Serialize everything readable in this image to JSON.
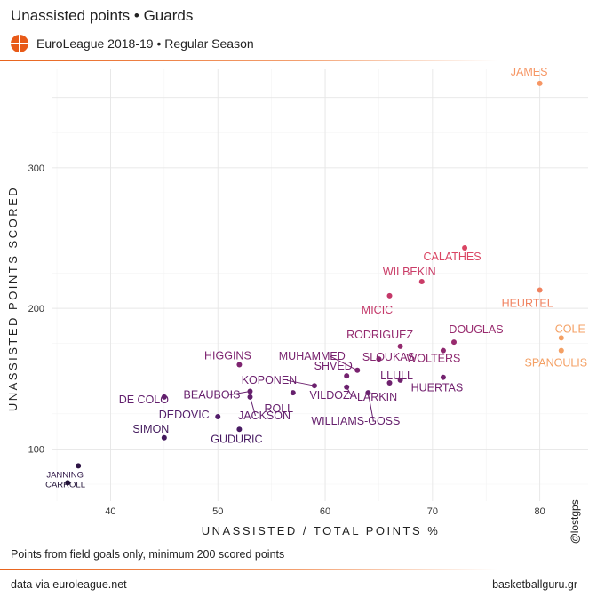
{
  "header": {
    "title": "Unassisted points • Guards",
    "subtitle": "EuroLeague 2018-19 • Regular Season",
    "logo_icon": "euroleague-ball-logo"
  },
  "footer": {
    "caption": "Points from field goals only, minimum 200 scored points",
    "source": "data via euroleague.net",
    "site": "basketballguru.gr",
    "handle_at": "@",
    "handle": "lostgps"
  },
  "colors": {
    "low": "#1a1030",
    "mid_low": "#5c1f6b",
    "mid": "#a42e6a",
    "mid_high": "#d8456a",
    "high": "#f4885a"
  },
  "chart_data": {
    "type": "scatter",
    "xlabel": "UNASSISTED / TOTAL POINTS %",
    "ylabel": "UNASSISTED POINTS SCORED",
    "xlim": [
      34.5,
      84.5
    ],
    "ylim": [
      63,
      370
    ],
    "xticks": [
      40,
      50,
      60,
      70,
      80
    ],
    "yticks": [
      100,
      200,
      300
    ],
    "grid": true,
    "legend": "none",
    "points": [
      {
        "name": "JAMES",
        "x": 80,
        "y": 360
      },
      {
        "name": "CALATHES",
        "x": 73,
        "y": 243
      },
      {
        "name": "WILBEKIN",
        "x": 69,
        "y": 219
      },
      {
        "name": "HEURTEL",
        "x": 80,
        "y": 213
      },
      {
        "name": "MICIC",
        "x": 66,
        "y": 209
      },
      {
        "name": "COLE",
        "x": 82,
        "y": 179
      },
      {
        "name": "DOUGLAS",
        "x": 72,
        "y": 176
      },
      {
        "name": "RODRIGUEZ",
        "x": 67,
        "y": 173
      },
      {
        "name": "SPANOULIS",
        "x": 82,
        "y": 170
      },
      {
        "name": "WOLTERS",
        "x": 71,
        "y": 170
      },
      {
        "name": "SLOUKAS",
        "x": 65,
        "y": 164
      },
      {
        "name": "HIGGINS",
        "x": 52,
        "y": 160
      },
      {
        "name": "MUHAMMED",
        "x": 63,
        "y": 156
      },
      {
        "name": "SHVED",
        "x": 62,
        "y": 152
      },
      {
        "name": "LLULL",
        "x": 67,
        "y": 149
      },
      {
        "name": "HUERTAS",
        "x": 71,
        "y": 151
      },
      {
        "name": "LARKIN",
        "x": 66,
        "y": 147
      },
      {
        "name": "KOPONEN",
        "x": 59,
        "y": 145
      },
      {
        "name": "VILDOZA",
        "x": 62,
        "y": 144
      },
      {
        "name": "WILLIAMS-GOSS",
        "x": 64,
        "y": 140
      },
      {
        "name": "BEAUBOIS",
        "x": 53,
        "y": 141
      },
      {
        "name": "ROLL",
        "x": 57,
        "y": 140
      },
      {
        "name": "DE COLO",
        "x": 45,
        "y": 137
      },
      {
        "name": "JACKSON",
        "x": 53,
        "y": 137
      },
      {
        "name": "DEDOVIC",
        "x": 50,
        "y": 123
      },
      {
        "name": "GUDURIC",
        "x": 52,
        "y": 114
      },
      {
        "name": "SIMON",
        "x": 45,
        "y": 108
      },
      {
        "name": "JANNING",
        "x": 37,
        "y": 88
      },
      {
        "name": "CARROLL",
        "x": 36,
        "y": 76
      }
    ]
  }
}
